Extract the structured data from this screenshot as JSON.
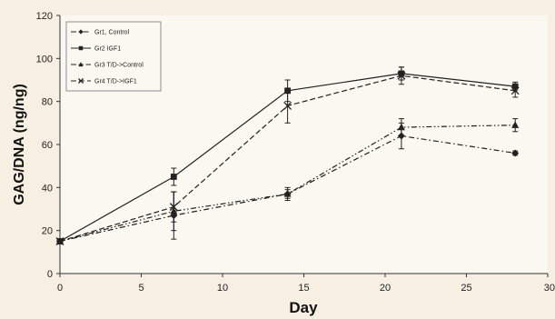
{
  "chart_data": {
    "type": "line",
    "xlabel": "Day",
    "ylabel": "GAG/DNA (ng/ng)",
    "xlim": [
      0,
      30
    ],
    "ylim": [
      0,
      120
    ],
    "xticks": [
      0,
      5,
      10,
      15,
      20,
      25,
      30
    ],
    "yticks": [
      0,
      20,
      40,
      60,
      80,
      100,
      120
    ],
    "grid": false,
    "legend_position": "top-left",
    "x": [
      0,
      7,
      14,
      21,
      28
    ],
    "series": [
      {
        "name": "Gr1, Control",
        "values": [
          15,
          27,
          37,
          64,
          56
        ],
        "errors": [
          0,
          11,
          2,
          6,
          1
        ],
        "marker": "diamond",
        "dash": "dash-dot",
        "color": "#222222"
      },
      {
        "name": "Gr2 IGF1",
        "values": [
          15,
          45,
          85,
          93,
          87
        ],
        "errors": [
          0,
          4,
          5,
          3,
          2
        ],
        "marker": "square",
        "dash": "solid",
        "color": "#222222"
      },
      {
        "name": "Gr3 T/D->Control",
        "values": [
          15,
          29,
          37,
          68,
          69
        ],
        "errors": [
          0,
          9,
          3,
          4,
          3
        ],
        "marker": "triangle",
        "dash": "dash-dot-dot",
        "color": "#222222"
      },
      {
        "name": "Gr4 T/D->IGF1",
        "values": [
          15,
          31,
          78,
          92,
          85
        ],
        "errors": [
          0,
          7,
          8,
          4,
          3
        ],
        "marker": "cross",
        "dash": "dashed",
        "color": "#222222"
      }
    ]
  }
}
